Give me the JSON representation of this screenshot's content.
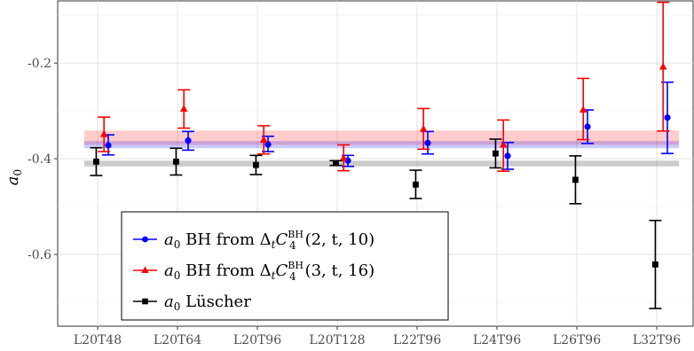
{
  "chart_data": {
    "type": "scatter",
    "categories": [
      "L20T48",
      "L20T64",
      "L20T96",
      "L20T128",
      "L22T96",
      "L24T96",
      "L26T96",
      "L32T96"
    ],
    "ylabel": "a0",
    "ylim": [
      -0.75,
      -0.07
    ],
    "yticks": [
      -0.2,
      -0.4,
      -0.6
    ],
    "ytick_labels": [
      "-0.2",
      "-0.4",
      "-0.6"
    ],
    "grid": true,
    "legend_position": "bottom-left",
    "series": [
      {
        "key": "bh2",
        "name": "a0 BH from ΔtC4BH(2,t,10)",
        "color": "#0000ff",
        "marker": "circle",
        "offset": 0.15,
        "values": [
          -0.372,
          -0.362,
          -0.37,
          -0.404,
          -0.367,
          -0.394,
          -0.333,
          -0.314
        ],
        "err_low": [
          -0.392,
          -0.382,
          -0.385,
          -0.416,
          -0.39,
          -0.422,
          -0.368,
          -0.389
        ],
        "err_high": [
          -0.35,
          -0.343,
          -0.353,
          -0.393,
          -0.343,
          -0.366,
          -0.298,
          -0.24
        ]
      },
      {
        "key": "bh3",
        "name": "a0 BH from ΔtC4BH(3,t,16)",
        "color": "#ff0000",
        "marker": "triangle",
        "offset": 0.09,
        "values": [
          -0.349,
          -0.296,
          -0.361,
          -0.399,
          -0.338,
          -0.371,
          -0.298,
          -0.208
        ],
        "err_low": [
          -0.385,
          -0.336,
          -0.39,
          -0.425,
          -0.38,
          -0.426,
          -0.36,
          -0.342
        ],
        "err_high": [
          -0.313,
          -0.256,
          -0.331,
          -0.371,
          -0.295,
          -0.319,
          -0.232,
          -0.073
        ]
      },
      {
        "key": "luscher",
        "name": "a0 Lüscher",
        "color": "#000000",
        "marker": "square",
        "offset": -0.02,
        "values": [
          -0.406,
          -0.406,
          -0.413,
          -0.409,
          -0.454,
          -0.389,
          -0.444,
          -0.621
        ],
        "err_low": [
          -0.435,
          -0.434,
          -0.433,
          -0.414,
          -0.483,
          -0.419,
          -0.494,
          -0.713
        ],
        "err_high": [
          -0.377,
          -0.378,
          -0.393,
          -0.404,
          -0.424,
          -0.359,
          -0.394,
          -0.529
        ]
      }
    ],
    "bands": [
      {
        "series": "bh3",
        "color": "#ff0000",
        "opacity": 0.2,
        "y_low": -0.371,
        "y_high": -0.341
      },
      {
        "series": "bh2",
        "color": "#0000ff",
        "opacity": 0.2,
        "y_low": -0.378,
        "y_high": -0.363
      },
      {
        "series": "luscher",
        "color": "#808080",
        "opacity": 0.4,
        "y_low": -0.416,
        "y_high": -0.404
      }
    ],
    "legend": {
      "entries": [
        {
          "series": "bh2",
          "sym": "a",
          "sub": "0",
          "text1": " BH from Δ",
          "sub2": "t",
          "sym2": "C",
          "sup": "BH",
          "sub3": "4",
          "args": "(2, t, 10)"
        },
        {
          "series": "bh3",
          "sym": "a",
          "sub": "0",
          "text1": " BH from Δ",
          "sub2": "t",
          "sym2": "C",
          "sup": "BH",
          "sub3": "4",
          "args": "(3, t, 16)"
        },
        {
          "series": "luscher",
          "sym": "a",
          "sub": "0",
          "text1": " Lüscher"
        }
      ]
    }
  }
}
